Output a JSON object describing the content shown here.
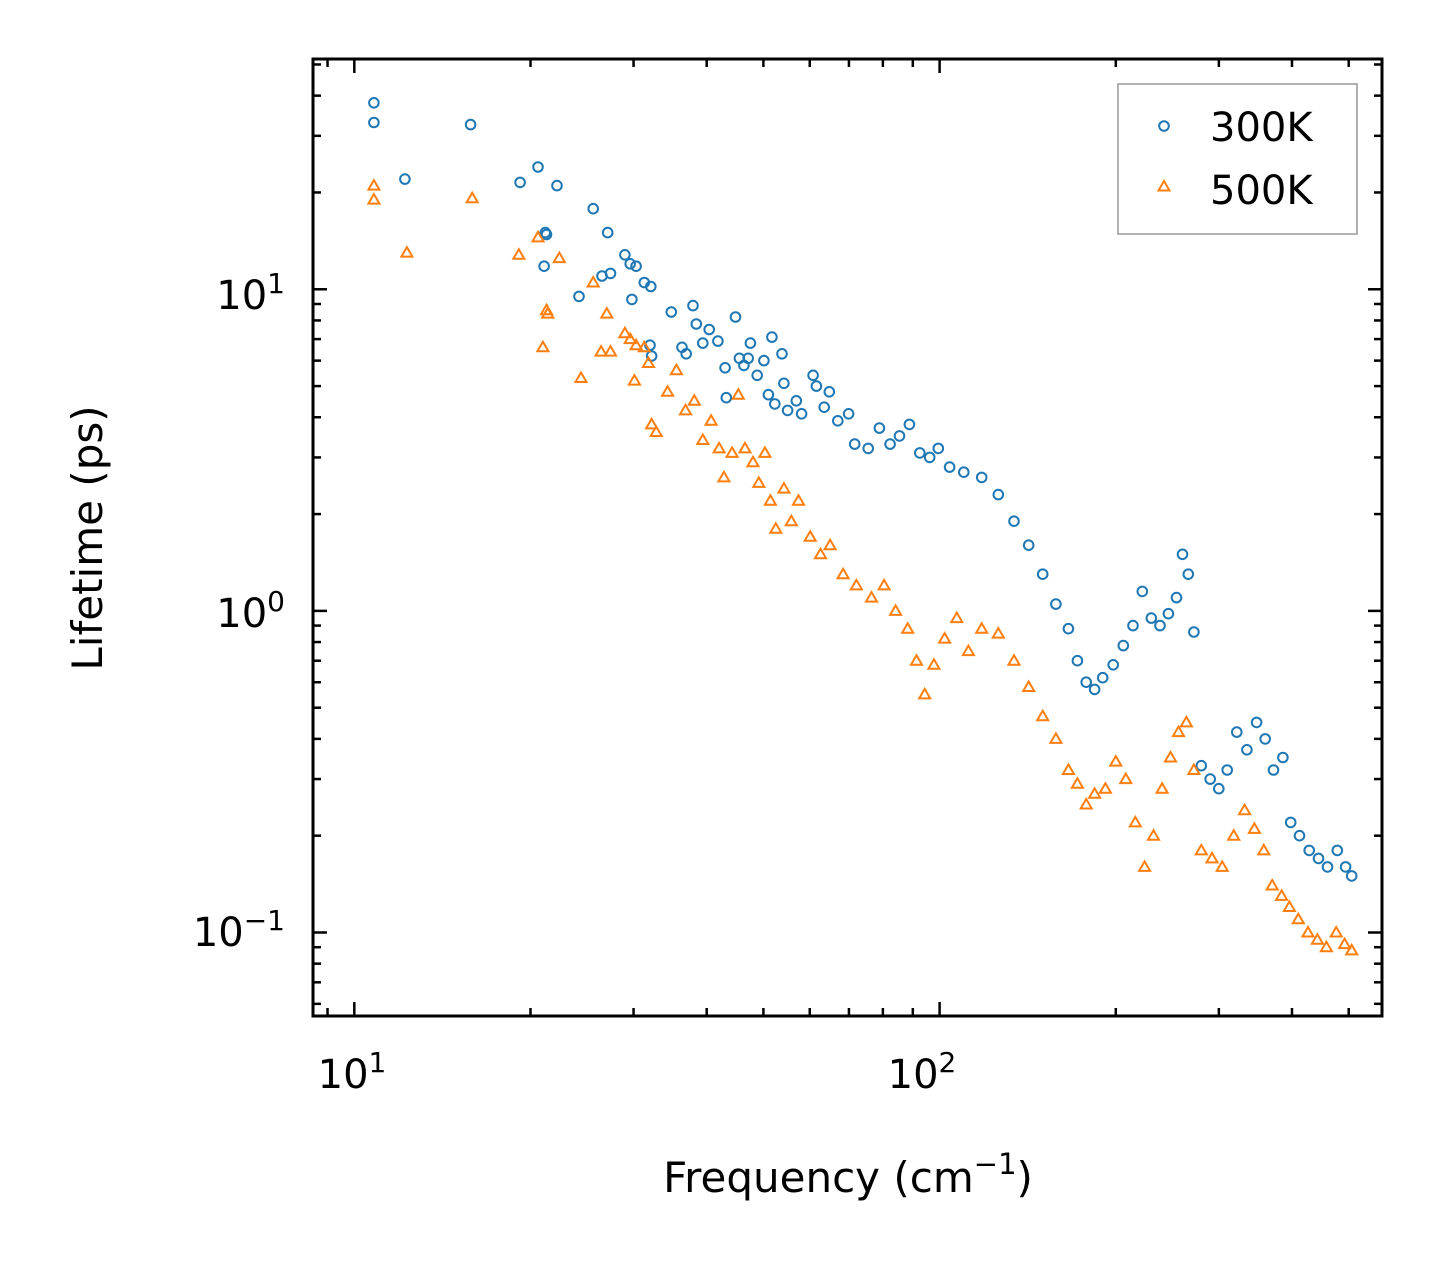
{
  "chart_data": {
    "type": "scatter",
    "xscale": "log",
    "yscale": "log",
    "xlim": [
      8.5,
      570
    ],
    "ylim": [
      0.055,
      52
    ],
    "xlabel": "Frequency (cm",
    "xlabel_sup": "−1",
    "xlabel_tail": ")",
    "ylabel": "Lifetime (ps)",
    "x_ticks": [
      {
        "value": 10,
        "base": "10",
        "exp": "1"
      },
      {
        "value": 100,
        "base": "10",
        "exp": "2"
      }
    ],
    "y_ticks": [
      {
        "value": 0.1,
        "base": "10",
        "exp": "−1"
      },
      {
        "value": 1,
        "base": "10",
        "exp": "0"
      },
      {
        "value": 10,
        "base": "10",
        "exp": "1"
      }
    ],
    "legend_position": "top-right",
    "series": [
      {
        "name": "300K",
        "marker": "circle",
        "color": "#1f77b4",
        "points": [
          [
            10.8,
            38
          ],
          [
            10.8,
            33
          ],
          [
            12.2,
            22
          ],
          [
            15.8,
            32.5
          ],
          [
            19.2,
            21.5
          ],
          [
            20.6,
            24
          ],
          [
            21.2,
            15
          ],
          [
            21.3,
            14.8
          ],
          [
            21.1,
            11.8
          ],
          [
            22.2,
            21
          ],
          [
            24.2,
            9.5
          ],
          [
            25.6,
            17.8
          ],
          [
            26.5,
            11
          ],
          [
            27.1,
            15
          ],
          [
            27.4,
            11.2
          ],
          [
            29,
            12.8
          ],
          [
            29.6,
            12
          ],
          [
            29.8,
            9.3
          ],
          [
            30.3,
            11.8
          ],
          [
            31.3,
            10.5
          ],
          [
            32.1,
            10.2
          ],
          [
            32,
            6.7
          ],
          [
            32.2,
            6.2
          ],
          [
            34.8,
            8.5
          ],
          [
            36.3,
            6.6
          ],
          [
            36.9,
            6.3
          ],
          [
            37.9,
            8.9
          ],
          [
            38.4,
            7.8
          ],
          [
            39.4,
            6.8
          ],
          [
            40.4,
            7.5
          ],
          [
            41.8,
            6.9
          ],
          [
            43,
            5.7
          ],
          [
            43.2,
            4.6
          ],
          [
            45.5,
            6.1
          ],
          [
            44.8,
            8.2
          ],
          [
            46.3,
            5.8
          ],
          [
            47.1,
            6.1
          ],
          [
            47.5,
            6.8
          ],
          [
            48.8,
            5.4
          ],
          [
            50.1,
            6
          ],
          [
            51,
            4.7
          ],
          [
            51.7,
            7.1
          ],
          [
            52.3,
            4.4
          ],
          [
            53.8,
            6.3
          ],
          [
            54.2,
            5.1
          ],
          [
            55,
            4.2
          ],
          [
            56.9,
            4.5
          ],
          [
            58.1,
            4.1
          ],
          [
            60.8,
            5.4
          ],
          [
            61.6,
            5
          ],
          [
            63.5,
            4.3
          ],
          [
            64.8,
            4.8
          ],
          [
            67,
            3.9
          ],
          [
            69.9,
            4.1
          ],
          [
            71.6,
            3.3
          ],
          [
            75.5,
            3.2
          ],
          [
            78.9,
            3.7
          ],
          [
            82.3,
            3.3
          ],
          [
            85.4,
            3.5
          ],
          [
            88.8,
            3.8
          ],
          [
            92.5,
            3.1
          ],
          [
            96.2,
            3
          ],
          [
            99.5,
            3.2
          ],
          [
            104,
            2.8
          ],
          [
            110,
            2.7
          ],
          [
            118,
            2.6
          ],
          [
            126,
            2.3
          ],
          [
            134,
            1.9
          ],
          [
            142,
            1.6
          ],
          [
            150,
            1.3
          ],
          [
            158,
            1.05
          ],
          [
            166,
            0.88
          ],
          [
            172,
            0.7
          ],
          [
            178,
            0.6
          ],
          [
            184,
            0.57
          ],
          [
            190,
            0.62
          ],
          [
            198,
            0.68
          ],
          [
            206,
            0.78
          ],
          [
            214,
            0.9
          ],
          [
            222,
            1.15
          ],
          [
            230,
            0.95
          ],
          [
            238,
            0.9
          ],
          [
            246,
            0.98
          ],
          [
            254,
            1.1
          ],
          [
            260,
            1.5
          ],
          [
            266,
            1.3
          ],
          [
            272,
            0.86
          ],
          [
            280,
            0.33
          ],
          [
            290,
            0.3
          ],
          [
            300,
            0.28
          ],
          [
            310,
            0.32
          ],
          [
            322,
            0.42
          ],
          [
            335,
            0.37
          ],
          [
            348,
            0.45
          ],
          [
            360,
            0.4
          ],
          [
            372,
            0.32
          ],
          [
            386,
            0.35
          ],
          [
            398,
            0.22
          ],
          [
            412,
            0.2
          ],
          [
            428,
            0.18
          ],
          [
            444,
            0.17
          ],
          [
            460,
            0.16
          ],
          [
            478,
            0.18
          ],
          [
            494,
            0.16
          ],
          [
            506,
            0.15
          ]
        ]
      },
      {
        "name": "500K",
        "marker": "triangle",
        "color": "#ff7f0e",
        "points": [
          [
            10.8,
            21
          ],
          [
            10.8,
            19
          ],
          [
            12.3,
            13
          ],
          [
            15.9,
            19.2
          ],
          [
            19.1,
            12.8
          ],
          [
            20.6,
            14.5
          ],
          [
            21,
            6.6
          ],
          [
            21.3,
            8.6
          ],
          [
            21.4,
            8.4
          ],
          [
            22.4,
            12.5
          ],
          [
            24.4,
            5.3
          ],
          [
            25.6,
            10.5
          ],
          [
            26.4,
            6.4
          ],
          [
            27,
            8.4
          ],
          [
            27.4,
            6.4
          ],
          [
            29,
            7.3
          ],
          [
            29.6,
            7
          ],
          [
            30.3,
            6.7
          ],
          [
            30.1,
            5.2
          ],
          [
            31.3,
            6.6
          ],
          [
            31.8,
            5.9
          ],
          [
            32.2,
            3.8
          ],
          [
            32.8,
            3.6
          ],
          [
            34.3,
            4.8
          ],
          [
            35.5,
            5.6
          ],
          [
            36.8,
            4.2
          ],
          [
            38.1,
            4.5
          ],
          [
            39.4,
            3.4
          ],
          [
            40.7,
            3.9
          ],
          [
            42,
            3.2
          ],
          [
            42.8,
            2.6
          ],
          [
            44.2,
            3.1
          ],
          [
            45.3,
            4.7
          ],
          [
            46.5,
            3.2
          ],
          [
            48,
            2.9
          ],
          [
            49.1,
            2.5
          ],
          [
            50.3,
            3.1
          ],
          [
            51.4,
            2.2
          ],
          [
            52.5,
            1.8
          ],
          [
            54.2,
            2.4
          ],
          [
            55.8,
            1.9
          ],
          [
            57.4,
            2.2
          ],
          [
            60.1,
            1.7
          ],
          [
            62.6,
            1.5
          ],
          [
            65,
            1.6
          ],
          [
            68.4,
            1.3
          ],
          [
            72.1,
            1.2
          ],
          [
            76.5,
            1.1
          ],
          [
            80.4,
            1.2
          ],
          [
            84.1,
            1
          ],
          [
            88.2,
            0.88
          ],
          [
            91.3,
            0.7
          ],
          [
            94.3,
            0.55
          ],
          [
            97.8,
            0.68
          ],
          [
            102,
            0.82
          ],
          [
            107,
            0.95
          ],
          [
            112,
            0.75
          ],
          [
            118,
            0.88
          ],
          [
            126,
            0.85
          ],
          [
            134,
            0.7
          ],
          [
            142,
            0.58
          ],
          [
            150,
            0.47
          ],
          [
            158,
            0.4
          ],
          [
            166,
            0.32
          ],
          [
            172,
            0.29
          ],
          [
            178,
            0.25
          ],
          [
            184,
            0.27
          ],
          [
            192,
            0.28
          ],
          [
            200,
            0.34
          ],
          [
            208,
            0.3
          ],
          [
            216,
            0.22
          ],
          [
            224,
            0.16
          ],
          [
            232,
            0.2
          ],
          [
            240,
            0.28
          ],
          [
            248,
            0.35
          ],
          [
            256,
            0.42
          ],
          [
            264,
            0.45
          ],
          [
            272,
            0.32
          ],
          [
            280,
            0.18
          ],
          [
            292,
            0.17
          ],
          [
            304,
            0.16
          ],
          [
            318,
            0.2
          ],
          [
            332,
            0.24
          ],
          [
            345,
            0.21
          ],
          [
            358,
            0.18
          ],
          [
            370,
            0.14
          ],
          [
            384,
            0.13
          ],
          [
            396,
            0.12
          ],
          [
            410,
            0.11
          ],
          [
            426,
            0.1
          ],
          [
            442,
            0.095
          ],
          [
            458,
            0.09
          ],
          [
            476,
            0.1
          ],
          [
            492,
            0.092
          ],
          [
            506,
            0.088
          ]
        ]
      }
    ]
  }
}
